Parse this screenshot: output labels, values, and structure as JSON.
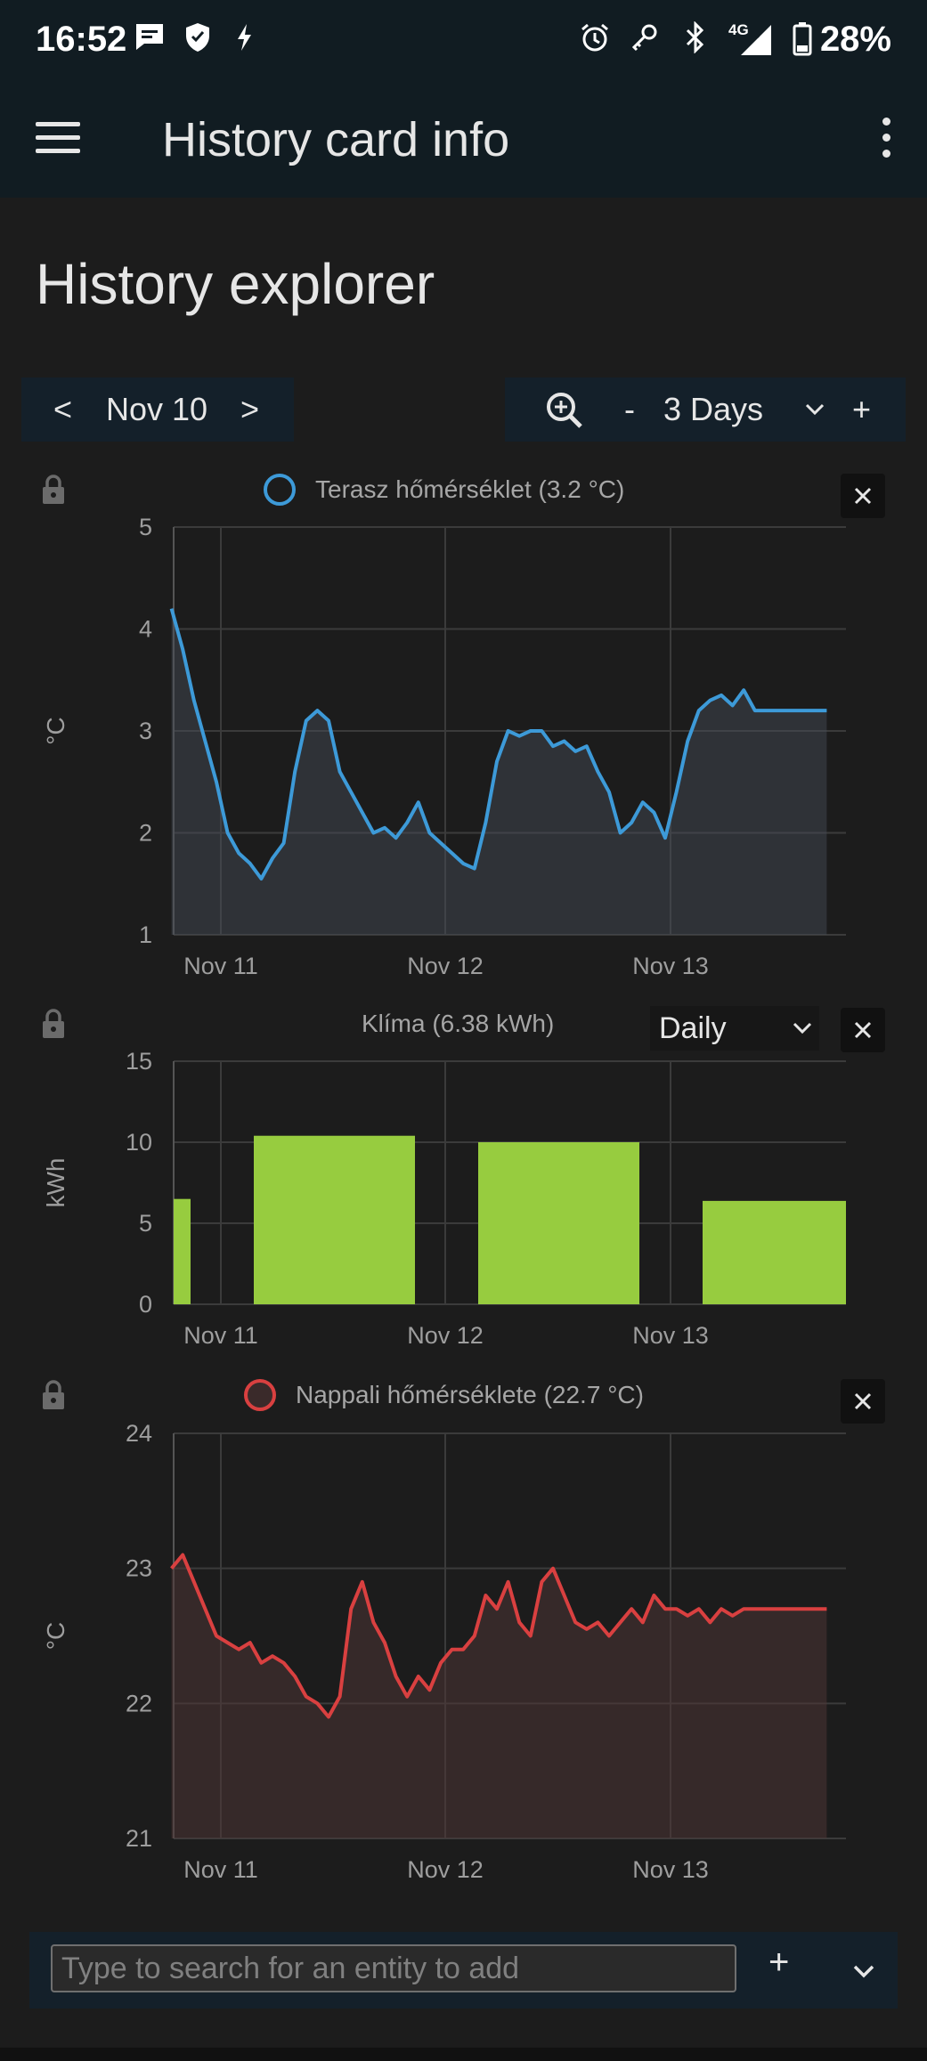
{
  "status_bar": {
    "time": "16:52",
    "network": "4G",
    "battery": "28%"
  },
  "app_bar": {
    "title": "History card info"
  },
  "page": {
    "title": "History explorer"
  },
  "date_nav": {
    "prev": "<",
    "date": "Nov 10",
    "next": ">"
  },
  "range": {
    "minus": "-",
    "value": "3 Days",
    "plus": "+"
  },
  "cards": {
    "temp_outdoor": {
      "legend": "Terasz hőmérséklet (3.2 °C)",
      "ylabel": "°C",
      "color": "#3d9ad8"
    },
    "klima": {
      "legend": "Klíma (6.38 kWh)",
      "ylabel": "kWh",
      "period": "Daily",
      "color": "#97cc3f"
    },
    "temp_indoor": {
      "legend": "Nappali hőmérséklete (22.7 °C)",
      "ylabel": "°C",
      "color": "#d94040"
    }
  },
  "search": {
    "placeholder": "Type to search for an entity to add",
    "add": "+"
  },
  "chart_data": [
    {
      "type": "line",
      "ylabel": "°C",
      "ylim": [
        1,
        5
      ],
      "yticks": [
        "1",
        "2",
        "3",
        "4",
        "5"
      ],
      "xticks": [
        "Nov 11",
        "Nov 12",
        "Nov 13"
      ],
      "series": [
        {
          "name": "Terasz hőmérséklet (3.2 °C)",
          "color": "#3d9ad8",
          "x": [
            0.0,
            0.05,
            0.1,
            0.15,
            0.2,
            0.25,
            0.3,
            0.35,
            0.4,
            0.45,
            0.5,
            0.55,
            0.6,
            0.65,
            0.7,
            0.75,
            0.8,
            0.85,
            0.9,
            0.95,
            1.0,
            1.05,
            1.1,
            1.15,
            1.2,
            1.25,
            1.3,
            1.35,
            1.4,
            1.45,
            1.5,
            1.55,
            1.6,
            1.65,
            1.7,
            1.75,
            1.8,
            1.85,
            1.9,
            1.95,
            2.0,
            2.05,
            2.1,
            2.15,
            2.2,
            2.25,
            2.3,
            2.35,
            2.4,
            2.45,
            2.5,
            2.55,
            2.6,
            2.65,
            2.7,
            2.75,
            2.8,
            2.85,
            2.9,
            2.92
          ],
          "values": [
            4.2,
            3.8,
            3.3,
            2.9,
            2.5,
            2.0,
            1.8,
            1.7,
            1.55,
            1.75,
            1.9,
            2.6,
            3.1,
            3.2,
            3.1,
            2.6,
            2.4,
            2.2,
            2.0,
            2.05,
            1.95,
            2.1,
            2.3,
            2.0,
            1.9,
            1.8,
            1.7,
            1.65,
            2.1,
            2.7,
            3.0,
            2.95,
            3.0,
            3.0,
            2.85,
            2.9,
            2.8,
            2.85,
            2.6,
            2.4,
            2.0,
            2.1,
            2.3,
            2.2,
            1.95,
            2.4,
            2.9,
            3.2,
            3.3,
            3.35,
            3.25,
            3.4,
            3.2,
            3.2,
            3.2,
            3.2,
            3.2,
            3.2,
            3.2,
            3.2
          ]
        }
      ]
    },
    {
      "type": "bar",
      "ylabel": "kWh",
      "ylim": [
        0,
        15
      ],
      "yticks": [
        "0",
        "5",
        "10",
        "15"
      ],
      "xticks": [
        "Nov 11",
        "Nov 12",
        "Nov 13"
      ],
      "categories": [
        "Nov 10",
        "Nov 11",
        "Nov 12",
        "Nov 13"
      ],
      "series": [
        {
          "name": "Klíma (6.38 kWh)",
          "color": "#97cc3f",
          "values": [
            6.5,
            10.4,
            10.0,
            6.38
          ]
        }
      ]
    },
    {
      "type": "line",
      "ylabel": "°C",
      "ylim": [
        21,
        24
      ],
      "yticks": [
        "21",
        "22",
        "23",
        "24"
      ],
      "xticks": [
        "Nov 11",
        "Nov 12",
        "Nov 13"
      ],
      "series": [
        {
          "name": "Nappali hőmérséklete (22.7 °C)",
          "color": "#d94040",
          "x": [
            0.0,
            0.05,
            0.1,
            0.15,
            0.2,
            0.25,
            0.3,
            0.35,
            0.4,
            0.45,
            0.5,
            0.55,
            0.6,
            0.65,
            0.7,
            0.75,
            0.8,
            0.85,
            0.9,
            0.95,
            1.0,
            1.05,
            1.1,
            1.15,
            1.2,
            1.25,
            1.3,
            1.35,
            1.4,
            1.45,
            1.5,
            1.55,
            1.6,
            1.65,
            1.7,
            1.75,
            1.8,
            1.85,
            1.9,
            1.95,
            2.0,
            2.05,
            2.1,
            2.15,
            2.2,
            2.25,
            2.3,
            2.35,
            2.4,
            2.45,
            2.5,
            2.55,
            2.6,
            2.65,
            2.7,
            2.75,
            2.8,
            2.85,
            2.9,
            2.92
          ],
          "values": [
            23.0,
            23.1,
            22.9,
            22.7,
            22.5,
            22.45,
            22.4,
            22.45,
            22.3,
            22.35,
            22.3,
            22.2,
            22.05,
            22.0,
            21.9,
            22.05,
            22.7,
            22.9,
            22.6,
            22.45,
            22.2,
            22.05,
            22.2,
            22.1,
            22.3,
            22.4,
            22.4,
            22.5,
            22.8,
            22.7,
            22.9,
            22.6,
            22.5,
            22.9,
            23.0,
            22.8,
            22.6,
            22.55,
            22.6,
            22.5,
            22.6,
            22.7,
            22.6,
            22.8,
            22.7,
            22.7,
            22.65,
            22.7,
            22.6,
            22.7,
            22.65,
            22.7,
            22.7,
            22.7,
            22.7,
            22.7,
            22.7,
            22.7,
            22.7,
            22.7
          ]
        }
      ]
    }
  ]
}
